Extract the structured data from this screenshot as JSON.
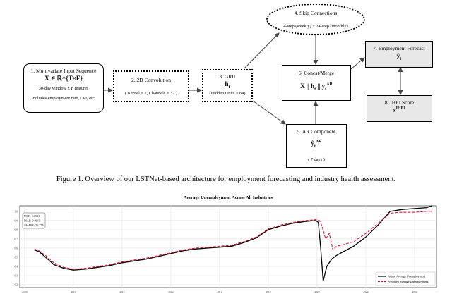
{
  "diagram": {
    "nodes": {
      "input": {
        "title": "1. Multivariate Input Sequence",
        "math": "X ∈ ℝ^{T×F}",
        "line1": "30-day window x F features",
        "line2": "Includes employment rate, CPI, etc."
      },
      "conv": {
        "title": "2. 2D Convolution",
        "sub": "( Kernel = 7, Channels = 32 )"
      },
      "gru": {
        "title": "3. GRU",
        "math": "h",
        "math_sub": "t",
        "sub": "(Hidden Units = 64)"
      },
      "skip": {
        "title": "4. Skip Connections",
        "sub": "4-step (weekly) + 24-step (monthly)"
      },
      "ar": {
        "title": "5. AR Component",
        "math": "ŷ",
        "math_sub": "t",
        "math_sup": "AR",
        "sub": "( 7 days )"
      },
      "concat": {
        "title": "6. Concat/Merge",
        "math": "X || h",
        "math_sub": "t",
        "math_mid": " || y",
        "math_sub2": "t",
        "math_sup": "AR"
      },
      "forecast": {
        "title": "7. Employment Forecast",
        "math": "ŷ",
        "math_sub": "t"
      },
      "ihei": {
        "title": "8. IHEI Score",
        "math": "s",
        "math_sup": "IHEI"
      }
    }
  },
  "caption": "Figure 1. Overview of our LSTNet-based architecture for employment forecasting and industry health assessment.",
  "chart_data": {
    "type": "line",
    "title": "Average Unemployment Across All Industries",
    "xlabel": "",
    "ylabel": "",
    "x_ticks": [
      "2008",
      "2010",
      "2012",
      "2014",
      "2016",
      "2018",
      "2020",
      "2022",
      "2024"
    ],
    "y_ticks": [
      "1.0",
      "0.9",
      "0.8",
      "0.7",
      "0.6",
      "0.5",
      "0.4",
      "0.3",
      "0.2"
    ],
    "xlim": [
      2007.8,
      2024.9
    ],
    "ylim": [
      0.17,
      1.06
    ],
    "grid": true,
    "legend_position": "bottom-right",
    "metrics": [
      "MSE: 0.0521",
      "MAE: 0.0915",
      "SMAPE: 26.75%"
    ],
    "series": [
      {
        "name": "Actual Average Unemployment",
        "color": "#000000",
        "style": "solid",
        "points": [
          [
            2008.4,
            0.58
          ],
          [
            2008.6,
            0.56
          ],
          [
            2008.9,
            0.49
          ],
          [
            2009.2,
            0.42
          ],
          [
            2009.6,
            0.38
          ],
          [
            2010.0,
            0.36
          ],
          [
            2010.5,
            0.37
          ],
          [
            2011.0,
            0.39
          ],
          [
            2011.5,
            0.41
          ],
          [
            2012.0,
            0.44
          ],
          [
            2012.5,
            0.46
          ],
          [
            2013.0,
            0.48
          ],
          [
            2013.5,
            0.51
          ],
          [
            2014.0,
            0.54
          ],
          [
            2014.5,
            0.57
          ],
          [
            2015.0,
            0.59
          ],
          [
            2015.5,
            0.6
          ],
          [
            2016.0,
            0.61
          ],
          [
            2016.5,
            0.62
          ],
          [
            2017.0,
            0.66
          ],
          [
            2017.5,
            0.71
          ],
          [
            2018.0,
            0.8
          ],
          [
            2018.5,
            0.84
          ],
          [
            2019.0,
            0.87
          ],
          [
            2019.5,
            0.89
          ],
          [
            2019.95,
            0.9
          ],
          [
            2020.05,
            0.88
          ],
          [
            2020.15,
            0.6
          ],
          [
            2020.25,
            0.24
          ],
          [
            2020.4,
            0.4
          ],
          [
            2020.6,
            0.48
          ],
          [
            2020.8,
            0.52
          ],
          [
            2021.0,
            0.55
          ],
          [
            2021.5,
            0.62
          ],
          [
            2022.0,
            0.72
          ],
          [
            2022.5,
            0.85
          ],
          [
            2023.0,
            1.0
          ],
          [
            2023.5,
            1.02
          ],
          [
            2024.0,
            1.03
          ],
          [
            2024.5,
            1.04
          ],
          [
            2024.7,
            1.06
          ]
        ]
      },
      {
        "name": "Predicted Average Unemployment",
        "color": "#e0001b",
        "style": "dashed",
        "points": [
          [
            2008.4,
            0.59
          ],
          [
            2008.6,
            0.57
          ],
          [
            2008.9,
            0.51
          ],
          [
            2009.2,
            0.44
          ],
          [
            2009.6,
            0.39
          ],
          [
            2010.0,
            0.37
          ],
          [
            2010.5,
            0.38
          ],
          [
            2011.0,
            0.4
          ],
          [
            2011.5,
            0.42
          ],
          [
            2012.0,
            0.45
          ],
          [
            2012.5,
            0.47
          ],
          [
            2013.0,
            0.49
          ],
          [
            2013.5,
            0.52
          ],
          [
            2014.0,
            0.55
          ],
          [
            2014.5,
            0.58
          ],
          [
            2015.0,
            0.6
          ],
          [
            2015.5,
            0.61
          ],
          [
            2016.0,
            0.62
          ],
          [
            2016.5,
            0.63
          ],
          [
            2017.0,
            0.67
          ],
          [
            2017.5,
            0.72
          ],
          [
            2018.0,
            0.81
          ],
          [
            2018.5,
            0.85
          ],
          [
            2019.0,
            0.88
          ],
          [
            2019.5,
            0.9
          ],
          [
            2019.95,
            0.91
          ],
          [
            2020.1,
            0.9
          ],
          [
            2020.2,
            0.84
          ],
          [
            2020.35,
            0.7
          ],
          [
            2020.5,
            0.76
          ],
          [
            2020.65,
            0.58
          ],
          [
            2020.8,
            0.62
          ],
          [
            2021.0,
            0.63
          ],
          [
            2021.5,
            0.67
          ],
          [
            2022.0,
            0.76
          ],
          [
            2022.5,
            0.87
          ],
          [
            2023.0,
            0.98
          ],
          [
            2023.5,
            0.99
          ],
          [
            2024.0,
            0.99
          ],
          [
            2024.5,
            1.0
          ],
          [
            2024.7,
            1.0
          ]
        ]
      }
    ]
  }
}
